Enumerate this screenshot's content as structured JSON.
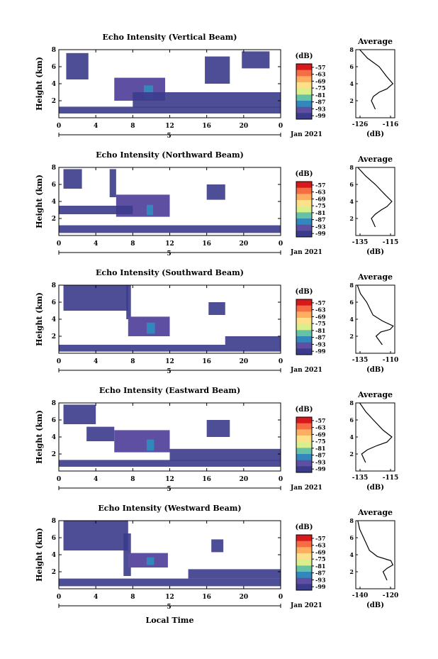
{
  "figure": {
    "xaxis_label": "Local Time",
    "date_label": "Jan 2021",
    "day_label": "5"
  },
  "colorbar": {
    "unit": "(dB)",
    "ticks": [
      "-57",
      "-63",
      "-69",
      "-75",
      "-81",
      "-87",
      "-93",
      "-99"
    ],
    "colors": [
      "#d7191c",
      "#f46d43",
      "#fdae61",
      "#fee08b",
      "#d9ef8b",
      "#66c2a5",
      "#3288bd",
      "#5e4fa2",
      "#3b3b8c"
    ]
  },
  "chart_data": [
    {
      "type": "heatmap",
      "title": "Echo Intensity (Vertical Beam)",
      "ylabel": "Height (km)",
      "xlim": [
        0,
        24
      ],
      "ylim": [
        0,
        8
      ],
      "xticks": [
        "0",
        "4",
        "8",
        "12",
        "16",
        "20",
        "0"
      ],
      "yticks": [
        "2",
        "4",
        "6",
        "8"
      ],
      "echo_regions": [
        {
          "x": [
            0.8,
            3.2
          ],
          "y": [
            4.5,
            7.6
          ],
          "level": "weak"
        },
        {
          "x": [
            6.0,
            11.5
          ],
          "y": [
            2.0,
            4.7
          ],
          "level": "moderate"
        },
        {
          "x": [
            9.2,
            10.2
          ],
          "y": [
            2.2,
            3.8
          ],
          "level": "strong"
        },
        {
          "x": [
            15.8,
            18.5
          ],
          "y": [
            4.0,
            7.2
          ],
          "level": "weak"
        },
        {
          "x": [
            19.8,
            22.8
          ],
          "y": [
            5.8,
            7.8
          ],
          "level": "weak"
        },
        {
          "x": [
            0.0,
            24.0
          ],
          "y": [
            0.5,
            1.3
          ],
          "level": "weak"
        },
        {
          "x": [
            8.0,
            24.0
          ],
          "y": [
            1.2,
            3.0
          ],
          "level": "weak"
        }
      ],
      "profile": {
        "title": "Average",
        "xlabel": "(dB)",
        "xlim": [
          -126,
          -116
        ],
        "xticks": [
          "-126",
          "-116"
        ],
        "yticks": [
          "2",
          "4",
          "6",
          "8"
        ],
        "x": [
          -121,
          -121.5,
          -122,
          -121.5,
          -120,
          -118,
          -116.5,
          -118,
          -120,
          -123,
          -125
        ],
        "y": [
          1,
          1.5,
          2,
          2.5,
          3,
          3.4,
          4,
          4.8,
          6,
          7,
          8
        ]
      }
    },
    {
      "type": "heatmap",
      "title": "Echo Intensity (Northward Beam)",
      "ylabel": "Height (km)",
      "xlim": [
        0,
        24
      ],
      "ylim": [
        0,
        8
      ],
      "xticks": [
        "0",
        "4",
        "8",
        "12",
        "16",
        "20",
        "0"
      ],
      "yticks": [
        "2",
        "4",
        "6",
        "8"
      ],
      "echo_regions": [
        {
          "x": [
            0.5,
            2.5
          ],
          "y": [
            5.5,
            7.8
          ],
          "level": "weak"
        },
        {
          "x": [
            5.5,
            6.2
          ],
          "y": [
            4.5,
            7.8
          ],
          "level": "weak"
        },
        {
          "x": [
            6.2,
            12.0
          ],
          "y": [
            2.2,
            4.8
          ],
          "level": "moderate"
        },
        {
          "x": [
            9.5,
            10.2
          ],
          "y": [
            2.4,
            3.6
          ],
          "level": "strong"
        },
        {
          "x": [
            16.0,
            18.0
          ],
          "y": [
            4.2,
            6.0
          ],
          "level": "weak"
        },
        {
          "x": [
            0.0,
            24.0
          ],
          "y": [
            0.3,
            1.2
          ],
          "level": "weak"
        },
        {
          "x": [
            0.0,
            8.0
          ],
          "y": [
            2.5,
            3.5
          ],
          "level": "weak"
        }
      ],
      "profile": {
        "title": "Average",
        "xlabel": "(dB)",
        "xlim": [
          -135,
          -115
        ],
        "xticks": [
          "-135",
          "-115"
        ],
        "yticks": [
          "2",
          "4",
          "6",
          "8"
        ],
        "x": [
          -125,
          -126,
          -127,
          -125,
          -122,
          -119,
          -116.5,
          -120,
          -125,
          -130,
          -134
        ],
        "y": [
          1,
          1.5,
          2,
          2.5,
          3,
          3.4,
          4,
          4.8,
          6,
          7,
          8
        ]
      }
    },
    {
      "type": "heatmap",
      "title": "Echo Intensity (Southward Beam)",
      "ylabel": "Height (km)",
      "xlim": [
        0,
        24
      ],
      "ylim": [
        0,
        8
      ],
      "xticks": [
        "0",
        "4",
        "8",
        "12",
        "16",
        "20",
        "0"
      ],
      "yticks": [
        "2",
        "4",
        "6",
        "8"
      ],
      "echo_regions": [
        {
          "x": [
            0.5,
            7.5
          ],
          "y": [
            5.0,
            8.0
          ],
          "level": "weak"
        },
        {
          "x": [
            7.3,
            7.8
          ],
          "y": [
            4.0,
            8.0
          ],
          "level": "weak"
        },
        {
          "x": [
            7.5,
            12.0
          ],
          "y": [
            2.0,
            4.3
          ],
          "level": "moderate"
        },
        {
          "x": [
            9.5,
            10.4
          ],
          "y": [
            2.3,
            3.6
          ],
          "level": "strong"
        },
        {
          "x": [
            16.2,
            18.0
          ],
          "y": [
            4.5,
            6.0
          ],
          "level": "weak"
        },
        {
          "x": [
            0.0,
            24.0
          ],
          "y": [
            0.2,
            1.0
          ],
          "level": "weak"
        },
        {
          "x": [
            18.0,
            24.0
          ],
          "y": [
            1.0,
            2.0
          ],
          "level": "weak"
        }
      ],
      "profile": {
        "title": "Average",
        "xlabel": "(dB)",
        "xlim": [
          -135,
          -110
        ],
        "xticks": [
          "-135",
          "-110"
        ],
        "yticks": [
          "2",
          "4",
          "6",
          "8"
        ],
        "x": [
          -118,
          -120,
          -122,
          -119,
          -113,
          -111,
          -118,
          -124,
          -128,
          -132,
          -134
        ],
        "y": [
          1,
          1.5,
          2,
          2.5,
          2.8,
          3.2,
          3.8,
          4.5,
          6,
          7,
          8
        ]
      }
    },
    {
      "type": "heatmap",
      "title": "Echo Intensity (Eastward Beam)",
      "ylabel": "Height (km)",
      "xlim": [
        0,
        24
      ],
      "ylim": [
        0,
        8
      ],
      "xticks": [
        "0",
        "4",
        "8",
        "12",
        "16",
        "20",
        "0"
      ],
      "yticks": [
        "2",
        "4",
        "6",
        "8"
      ],
      "echo_regions": [
        {
          "x": [
            0.5,
            4.0
          ],
          "y": [
            5.5,
            7.8
          ],
          "level": "weak"
        },
        {
          "x": [
            3.0,
            6.0
          ],
          "y": [
            3.5,
            5.2
          ],
          "level": "weak"
        },
        {
          "x": [
            6.0,
            12.0
          ],
          "y": [
            2.2,
            4.8
          ],
          "level": "moderate"
        },
        {
          "x": [
            9.5,
            10.3
          ],
          "y": [
            2.4,
            3.7
          ],
          "level": "strong"
        },
        {
          "x": [
            16.0,
            18.5
          ],
          "y": [
            4.0,
            6.0
          ],
          "level": "weak"
        },
        {
          "x": [
            0.0,
            24.0
          ],
          "y": [
            0.5,
            1.3
          ],
          "level": "weak"
        },
        {
          "x": [
            12.0,
            24.0
          ],
          "y": [
            1.2,
            2.6
          ],
          "level": "weak"
        }
      ],
      "profile": {
        "title": "Average",
        "xlabel": "(dB)",
        "xlim": [
          -135,
          -115
        ],
        "xticks": [
          "-135",
          "-115"
        ],
        "yticks": [
          "2",
          "4",
          "6",
          "8"
        ],
        "x": [
          -130,
          -131,
          -132,
          -129,
          -124,
          -119,
          -116.5,
          -121,
          -126,
          -130,
          -133
        ],
        "y": [
          1,
          1.5,
          2,
          2.5,
          3,
          3.4,
          4,
          4.8,
          6,
          7,
          8
        ]
      }
    },
    {
      "type": "heatmap",
      "title": "Echo Intensity (Westward Beam)",
      "ylabel": "Height (km)",
      "xlim": [
        0,
        24
      ],
      "ylim": [
        0,
        8
      ],
      "xticks": [
        "0",
        "4",
        "8",
        "12",
        "16",
        "20",
        "0"
      ],
      "yticks": [
        "2",
        "4",
        "6",
        "8"
      ],
      "echo_regions": [
        {
          "x": [
            0.5,
            7.5
          ],
          "y": [
            4.5,
            8.0
          ],
          "level": "weak"
        },
        {
          "x": [
            7.0,
            7.8
          ],
          "y": [
            1.5,
            6.5
          ],
          "level": "weak"
        },
        {
          "x": [
            7.5,
            11.8
          ],
          "y": [
            2.5,
            4.2
          ],
          "level": "moderate"
        },
        {
          "x": [
            9.5,
            10.3
          ],
          "y": [
            2.8,
            3.7
          ],
          "level": "strong"
        },
        {
          "x": [
            16.5,
            17.8
          ],
          "y": [
            4.3,
            5.8
          ],
          "level": "weak"
        },
        {
          "x": [
            0.0,
            24.0
          ],
          "y": [
            0.3,
            1.2
          ],
          "level": "weak"
        },
        {
          "x": [
            14.0,
            24.0
          ],
          "y": [
            1.2,
            2.3
          ],
          "level": "weak"
        }
      ],
      "profile": {
        "title": "Average",
        "xlabel": "(dB)",
        "xlim": [
          -140,
          -120
        ],
        "xticks": [
          "-140",
          "-120"
        ],
        "yticks": [
          "2",
          "4",
          "6",
          "8"
        ],
        "x": [
          -124,
          -125,
          -126,
          -124,
          -121,
          -122,
          -129,
          -133,
          -136,
          -138,
          -139
        ],
        "y": [
          1,
          1.5,
          2,
          2.4,
          2.8,
          3.3,
          3.8,
          4.5,
          6,
          7,
          8
        ]
      }
    }
  ]
}
